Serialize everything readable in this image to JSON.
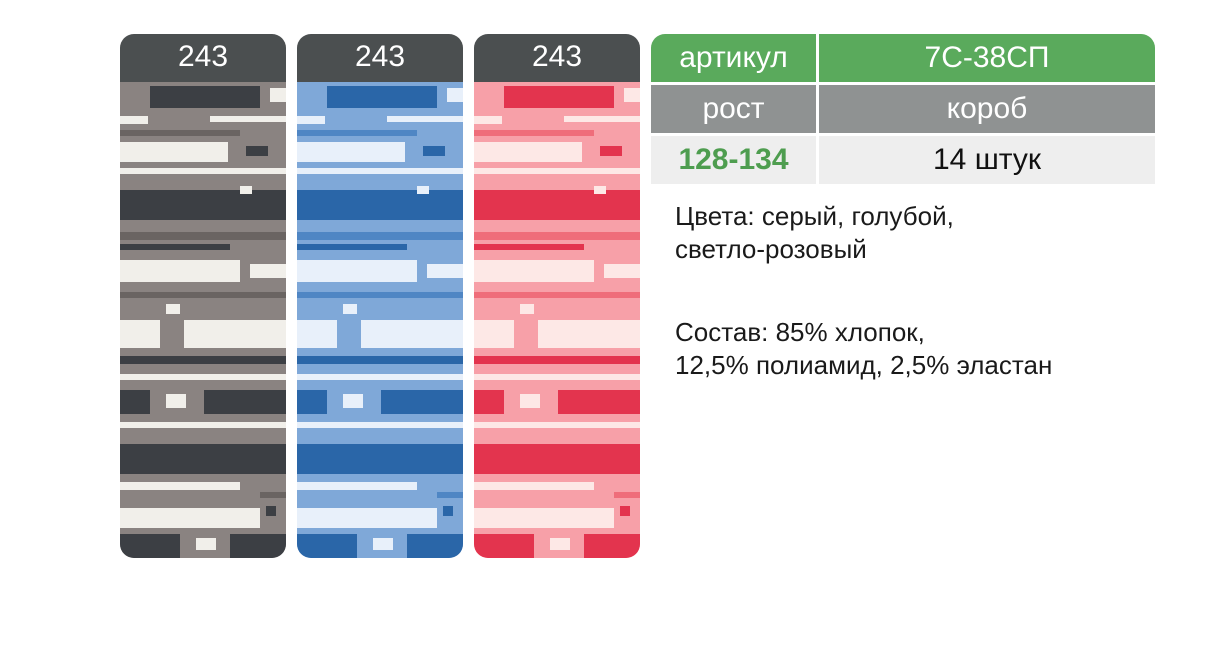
{
  "swatches": [
    {
      "label": "243",
      "base": "#8a8381",
      "dark": "#3c3f44",
      "light": "#f1efea",
      "mid": "#6a6462"
    },
    {
      "label": "243",
      "base": "#7fa8d8",
      "dark": "#2a66a8",
      "light": "#e8f0fa",
      "mid": "#4f86c4"
    },
    {
      "label": "243",
      "base": "#f7a0a8",
      "dark": "#e3344e",
      "light": "#fde8e6",
      "mid": "#ef6d7a"
    }
  ],
  "table": {
    "article_label": "артикул",
    "article_value": "7С-38СП",
    "size_label": "рост",
    "box_label": "короб",
    "size_value": "128-134",
    "box_value": "14 штук"
  },
  "colors_text": [
    "Цвета: серый, голубой,",
    "светло-розовый"
  ],
  "composition_text": [
    "Состав: 85% хлопок,",
    "12,5% полиамид, 2,5% эластан"
  ],
  "theme": {
    "green": "#5aaa5c",
    "gray": "#8f9292",
    "light": "#eeeeee",
    "dark_header": "#4b4f50"
  }
}
